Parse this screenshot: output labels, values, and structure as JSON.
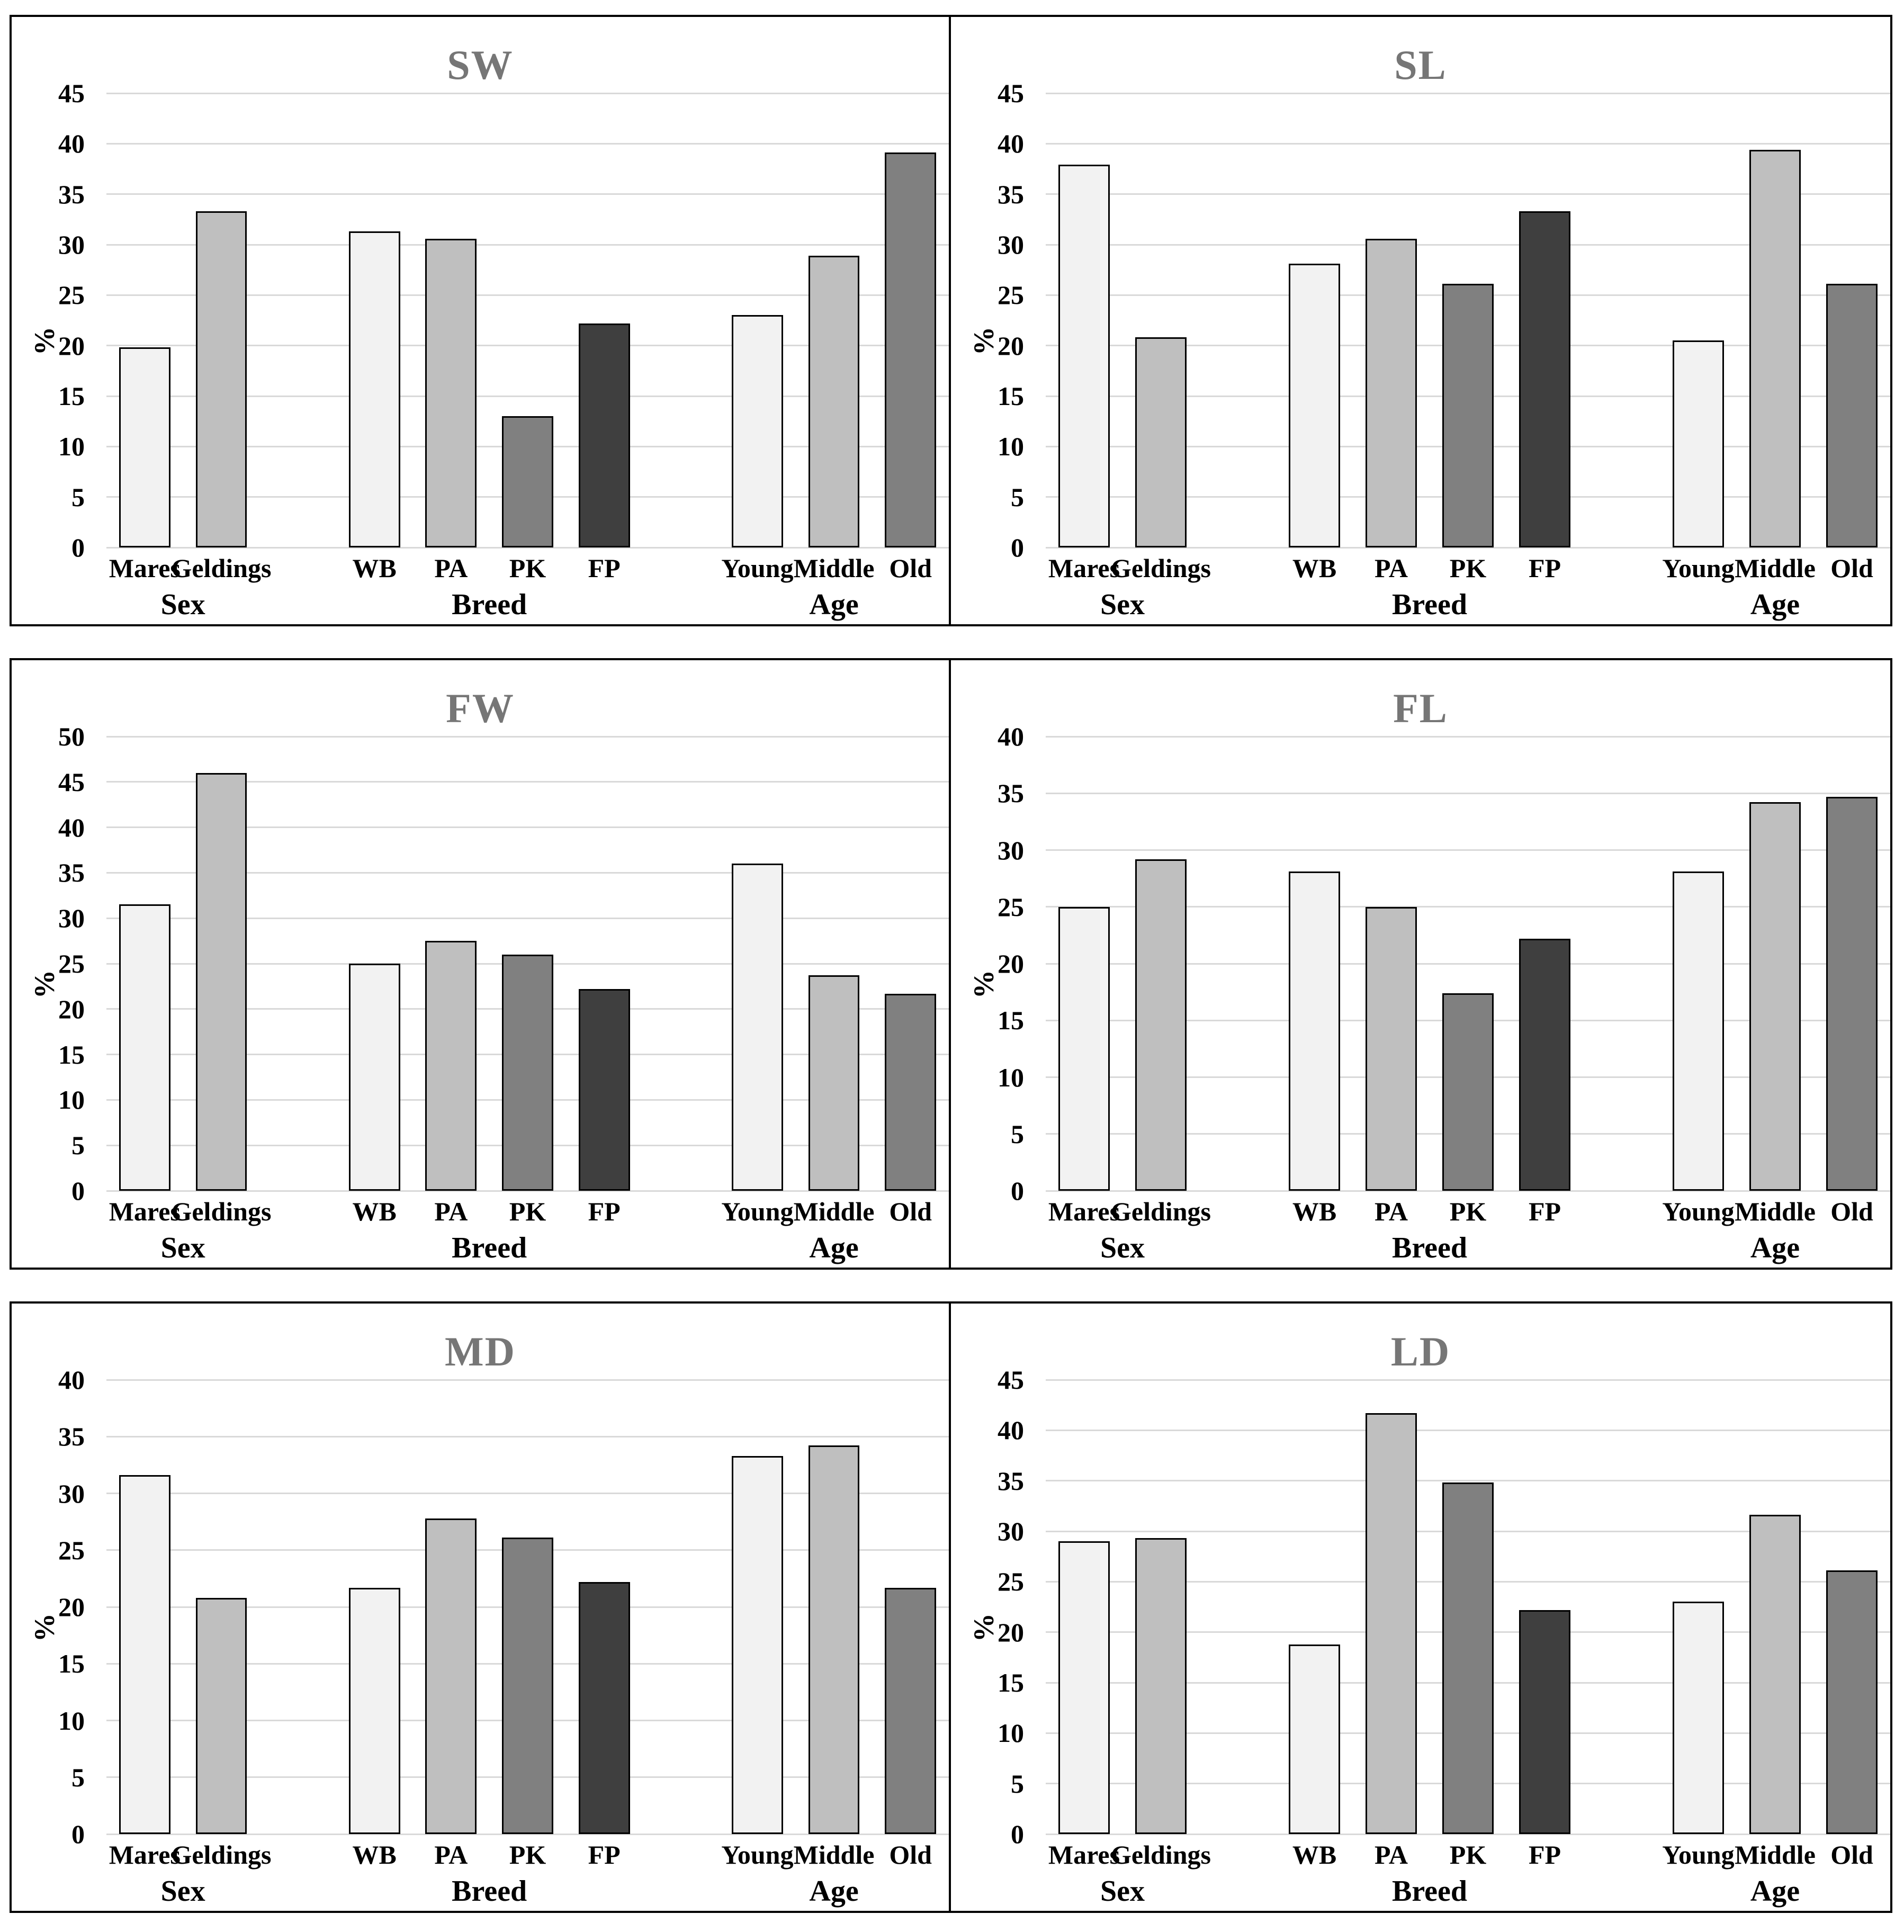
{
  "page": {
    "background": "#ffffff"
  },
  "styles": {
    "panel_border_color": "#000000",
    "title_color": "#767676",
    "gridline_color": "#d9d9d9",
    "bar_border_color": "#000000",
    "bar_palette": {
      "light": "#f2f2f2",
      "silver": "#bfbfbf",
      "gray": "#808080",
      "dark": "#3f3f3f"
    }
  },
  "chart_data": [
    {
      "id": "sw",
      "type": "bar",
      "title": "SW",
      "ylabel": "%",
      "ylim": [
        0,
        45
      ],
      "ytick_step": 5,
      "yticks": [
        "0",
        "5",
        "10",
        "15",
        "20",
        "25",
        "30",
        "35",
        "40",
        "45"
      ],
      "grid": true,
      "legend": "none",
      "groups": [
        {
          "label": "Sex",
          "categories": [
            "Mares",
            "Geldings"
          ],
          "values": [
            19.8,
            33.3
          ],
          "colors": [
            "light",
            "silver"
          ]
        },
        {
          "label": "Breed",
          "categories": [
            "WB",
            "PA",
            "PK",
            "FP"
          ],
          "values": [
            31.3,
            30.6,
            13.0,
            22.2
          ],
          "colors": [
            "light",
            "silver",
            "gray",
            "dark"
          ]
        },
        {
          "label": "Age",
          "categories": [
            "Young",
            "Middle",
            "Old"
          ],
          "values": [
            23.0,
            28.9,
            39.1
          ],
          "colors": [
            "light",
            "silver",
            "gray"
          ]
        }
      ]
    },
    {
      "id": "sl",
      "type": "bar",
      "title": "SL",
      "ylabel": "%",
      "ylim": [
        0,
        45
      ],
      "ytick_step": 5,
      "yticks": [
        "0",
        "5",
        "10",
        "15",
        "20",
        "25",
        "30",
        "35",
        "40",
        "45"
      ],
      "grid": true,
      "legend": "none",
      "groups": [
        {
          "label": "Sex",
          "categories": [
            "Mares",
            "Geldings"
          ],
          "values": [
            37.9,
            20.8
          ],
          "colors": [
            "light",
            "silver"
          ]
        },
        {
          "label": "Breed",
          "categories": [
            "WB",
            "PA",
            "PK",
            "FP"
          ],
          "values": [
            28.1,
            30.6,
            26.1,
            33.3
          ],
          "colors": [
            "light",
            "silver",
            "gray",
            "dark"
          ]
        },
        {
          "label": "Age",
          "categories": [
            "Young",
            "Middle",
            "Old"
          ],
          "values": [
            20.5,
            39.4,
            26.1
          ],
          "colors": [
            "light",
            "silver",
            "gray"
          ]
        }
      ]
    },
    {
      "id": "fw",
      "type": "bar",
      "title": "FW",
      "ylabel": "%",
      "ylim": [
        0,
        50
      ],
      "ytick_step": 5,
      "yticks": [
        "0",
        "5",
        "10",
        "15",
        "20",
        "25",
        "30",
        "35",
        "40",
        "45",
        "50"
      ],
      "grid": true,
      "legend": "none",
      "groups": [
        {
          "label": "Sex",
          "categories": [
            "Mares",
            "Geldings"
          ],
          "values": [
            31.5,
            46.0
          ],
          "colors": [
            "light",
            "silver"
          ]
        },
        {
          "label": "Breed",
          "categories": [
            "WB",
            "PA",
            "PK",
            "FP"
          ],
          "values": [
            25.0,
            27.5,
            26.0,
            22.2
          ],
          "colors": [
            "light",
            "silver",
            "gray",
            "dark"
          ]
        },
        {
          "label": "Age",
          "categories": [
            "Young",
            "Middle",
            "Old"
          ],
          "values": [
            36.0,
            23.7,
            21.7
          ],
          "colors": [
            "light",
            "silver",
            "gray"
          ]
        }
      ]
    },
    {
      "id": "fl",
      "type": "bar",
      "title": "FL",
      "ylabel": "%",
      "ylim": [
        0,
        40
      ],
      "ytick_step": 5,
      "yticks": [
        "0",
        "5",
        "10",
        "15",
        "20",
        "25",
        "30",
        "35",
        "40"
      ],
      "grid": true,
      "legend": "none",
      "groups": [
        {
          "label": "Sex",
          "categories": [
            "Mares",
            "Geldings"
          ],
          "values": [
            25.0,
            29.2
          ],
          "colors": [
            "light",
            "silver"
          ]
        },
        {
          "label": "Breed",
          "categories": [
            "WB",
            "PA",
            "PK",
            "FP"
          ],
          "values": [
            28.1,
            25.0,
            17.4,
            22.2
          ],
          "colors": [
            "light",
            "silver",
            "gray",
            "dark"
          ]
        },
        {
          "label": "Age",
          "categories": [
            "Young",
            "Middle",
            "Old"
          ],
          "values": [
            28.1,
            34.2,
            34.7
          ],
          "colors": [
            "light",
            "silver",
            "gray"
          ]
        }
      ]
    },
    {
      "id": "md",
      "type": "bar",
      "title": "MD",
      "ylabel": "%",
      "ylim": [
        0,
        40
      ],
      "ytick_step": 5,
      "yticks": [
        "0",
        "5",
        "10",
        "15",
        "20",
        "25",
        "30",
        "35",
        "40"
      ],
      "grid": true,
      "legend": "none",
      "groups": [
        {
          "label": "Sex",
          "categories": [
            "Mares",
            "Geldings"
          ],
          "values": [
            31.6,
            20.8
          ],
          "colors": [
            "light",
            "silver"
          ]
        },
        {
          "label": "Breed",
          "categories": [
            "WB",
            "PA",
            "PK",
            "FP"
          ],
          "values": [
            21.7,
            27.8,
            26.1,
            22.2
          ],
          "colors": [
            "light",
            "silver",
            "gray",
            "dark"
          ]
        },
        {
          "label": "Age",
          "categories": [
            "Young",
            "Middle",
            "Old"
          ],
          "values": [
            33.3,
            34.2,
            21.7
          ],
          "colors": [
            "light",
            "silver",
            "gray"
          ]
        }
      ]
    },
    {
      "id": "ld",
      "type": "bar",
      "title": "LD",
      "ylabel": "%",
      "ylim": [
        0,
        45
      ],
      "ytick_step": 5,
      "yticks": [
        "0",
        "5",
        "10",
        "15",
        "20",
        "25",
        "30",
        "35",
        "40",
        "45"
      ],
      "grid": true,
      "legend": "none",
      "groups": [
        {
          "label": "Sex",
          "categories": [
            "Mares",
            "Geldings"
          ],
          "values": [
            29.0,
            29.3
          ],
          "colors": [
            "light",
            "silver"
          ]
        },
        {
          "label": "Breed",
          "categories": [
            "WB",
            "PA",
            "PK",
            "FP"
          ],
          "values": [
            18.8,
            41.7,
            34.8,
            22.2
          ],
          "colors": [
            "light",
            "silver",
            "gray",
            "dark"
          ]
        },
        {
          "label": "Age",
          "categories": [
            "Young",
            "Middle",
            "Old"
          ],
          "values": [
            23.0,
            31.6,
            26.1
          ],
          "colors": [
            "light",
            "silver",
            "gray"
          ]
        }
      ]
    }
  ]
}
